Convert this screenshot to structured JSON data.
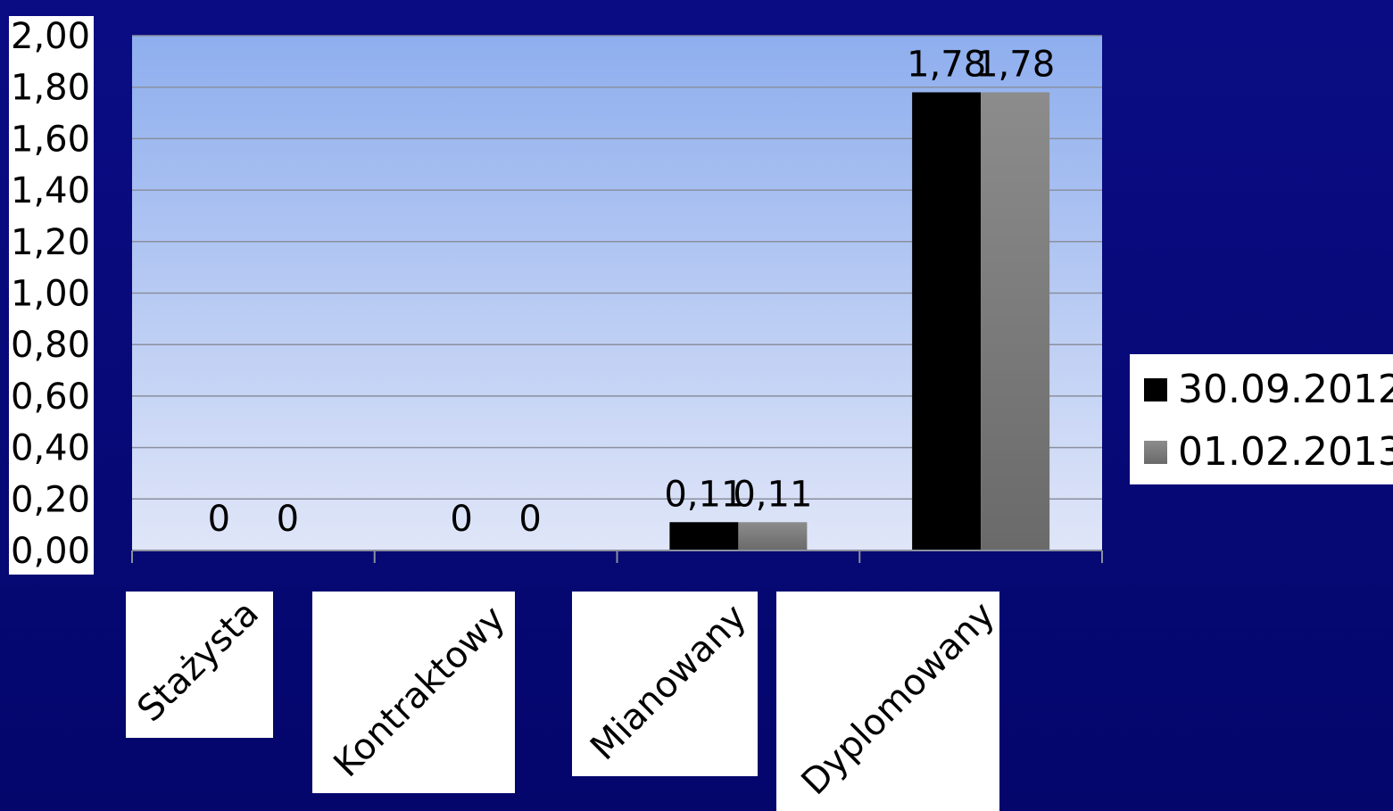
{
  "chart_data": {
    "type": "bar",
    "categories": [
      "Stażysta",
      "Kontraktowy",
      "Mianowany",
      "Dyplomowany"
    ],
    "series": [
      {
        "name": "30.09.2012",
        "values": [
          0,
          0,
          0.11,
          1.78
        ],
        "value_labels": [
          "0",
          "0",
          "0,11",
          "1,78"
        ],
        "color": "#000000"
      },
      {
        "name": "01.02.2013",
        "values": [
          0,
          0,
          0.11,
          1.78
        ],
        "value_labels": [
          "0",
          "0",
          "0,11",
          "1,78"
        ],
        "color": "#888888"
      }
    ],
    "yticks": [
      "0,00",
      "0,20",
      "0,40",
      "0,60",
      "0,80",
      "1,00",
      "1,20",
      "1,40",
      "1,60",
      "1,80",
      "2,00"
    ],
    "ylim": [
      0,
      2
    ],
    "grid": true,
    "legend_position": "right",
    "colors": {
      "page_background": "#06087a",
      "plot_background_top": "#8eaeee",
      "plot_background_bottom": "#e0e6f8",
      "gridline": "#8a8f9e"
    }
  }
}
